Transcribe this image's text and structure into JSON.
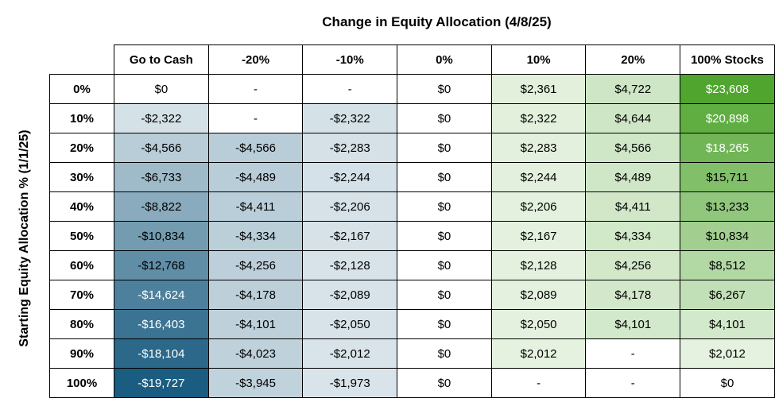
{
  "chart_data": {
    "type": "heatmap",
    "title": "Change in Equity Allocation (4/8/25)",
    "ylabel": "Starting Equity Allocation % (1/1/25)",
    "columns": [
      "Go to Cash",
      "-20%",
      "-10%",
      "0%",
      "10%",
      "20%",
      "100% Stocks"
    ],
    "rows": [
      "0%",
      "10%",
      "20%",
      "30%",
      "40%",
      "50%",
      "60%",
      "70%",
      "80%",
      "90%",
      "100%"
    ],
    "values": [
      [
        "$0",
        "-",
        "-",
        "$0",
        "$2,361",
        "$4,722",
        "$23,608"
      ],
      [
        "-$2,322",
        "-",
        "-$2,322",
        "$0",
        "$2,322",
        "$4,644",
        "$20,898"
      ],
      [
        "-$4,566",
        "-$4,566",
        "-$2,283",
        "$0",
        "$2,283",
        "$4,566",
        "$18,265"
      ],
      [
        "-$6,733",
        "-$4,489",
        "-$2,244",
        "$0",
        "$2,244",
        "$4,489",
        "$15,711"
      ],
      [
        "-$8,822",
        "-$4,411",
        "-$2,206",
        "$0",
        "$2,206",
        "$4,411",
        "$13,233"
      ],
      [
        "-$10,834",
        "-$4,334",
        "-$2,167",
        "$0",
        "$2,167",
        "$4,334",
        "$10,834"
      ],
      [
        "-$12,768",
        "-$4,256",
        "-$2,128",
        "$0",
        "$2,128",
        "$4,256",
        "$8,512"
      ],
      [
        "-$14,624",
        "-$4,178",
        "-$2,089",
        "$0",
        "$2,089",
        "$4,178",
        "$6,267"
      ],
      [
        "-$16,403",
        "-$4,101",
        "-$2,050",
        "$0",
        "$2,050",
        "$4,101",
        "$4,101"
      ],
      [
        "-$18,104",
        "-$4,023",
        "-$2,012",
        "$0",
        "$2,012",
        "-",
        "$2,012"
      ],
      [
        "-$19,727",
        "-$3,945",
        "-$1,973",
        "$0",
        "-",
        "-",
        "$0"
      ]
    ],
    "colors": {
      "negative_max": "#1b5d80",
      "positive_max": "#4fa52e",
      "neutral": "#ffffff",
      "light_text": "#ffffff",
      "dark_text": "#000000"
    }
  }
}
